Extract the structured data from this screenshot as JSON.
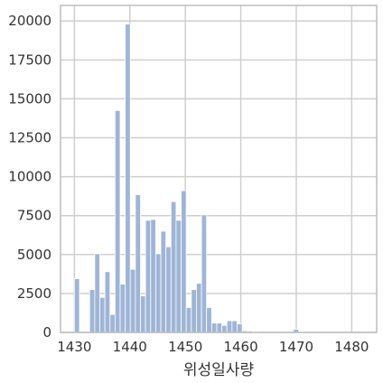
{
  "chart_data": {
    "type": "bar",
    "title": "",
    "xlabel": "위성일사량",
    "ylabel": "",
    "xlim": [
      1427.5,
      1484.5
    ],
    "ylim": [
      0,
      21000
    ],
    "x_ticks": [
      1430,
      1440,
      1450,
      1460,
      1470,
      1480
    ],
    "y_ticks": [
      0,
      2500,
      5000,
      7500,
      10000,
      12500,
      15000,
      17500,
      20000
    ],
    "grid": true,
    "legend": "none",
    "bins": [
      {
        "x0": 1430.0,
        "x1": 1430.92,
        "value": 3450
      },
      {
        "x0": 1432.75,
        "x1": 1433.67,
        "value": 2750
      },
      {
        "x0": 1433.67,
        "x1": 1434.58,
        "value": 5050
      },
      {
        "x0": 1434.58,
        "x1": 1435.5,
        "value": 2250
      },
      {
        "x0": 1435.5,
        "x1": 1436.42,
        "value": 3900
      },
      {
        "x0": 1436.42,
        "x1": 1437.33,
        "value": 1150
      },
      {
        "x0": 1437.33,
        "x1": 1438.25,
        "value": 14250
      },
      {
        "x0": 1438.25,
        "x1": 1439.17,
        "value": 3100
      },
      {
        "x0": 1439.17,
        "x1": 1440.08,
        "value": 19800
      },
      {
        "x0": 1440.08,
        "x1": 1441.0,
        "value": 4050
      },
      {
        "x0": 1441.0,
        "x1": 1441.92,
        "value": 8850
      },
      {
        "x0": 1441.92,
        "x1": 1442.83,
        "value": 2350
      },
      {
        "x0": 1442.83,
        "x1": 1443.75,
        "value": 7200
      },
      {
        "x0": 1443.75,
        "x1": 1444.67,
        "value": 7250
      },
      {
        "x0": 1444.67,
        "x1": 1445.58,
        "value": 5050
      },
      {
        "x0": 1445.58,
        "x1": 1446.5,
        "value": 6500
      },
      {
        "x0": 1446.5,
        "x1": 1447.42,
        "value": 5500
      },
      {
        "x0": 1447.42,
        "x1": 1448.33,
        "value": 8400
      },
      {
        "x0": 1448.33,
        "x1": 1449.25,
        "value": 7200
      },
      {
        "x0": 1449.25,
        "x1": 1450.17,
        "value": 9100
      },
      {
        "x0": 1450.17,
        "x1": 1451.08,
        "value": 1600
      },
      {
        "x0": 1451.08,
        "x1": 1452.0,
        "value": 2750
      },
      {
        "x0": 1452.0,
        "x1": 1452.92,
        "value": 3150
      },
      {
        "x0": 1452.92,
        "x1": 1453.83,
        "value": 7550
      },
      {
        "x0": 1453.83,
        "x1": 1454.75,
        "value": 1600
      },
      {
        "x0": 1454.75,
        "x1": 1455.67,
        "value": 600
      },
      {
        "x0": 1455.67,
        "x1": 1456.58,
        "value": 600
      },
      {
        "x0": 1456.58,
        "x1": 1457.5,
        "value": 450
      },
      {
        "x0": 1457.5,
        "x1": 1458.42,
        "value": 750
      },
      {
        "x0": 1458.42,
        "x1": 1459.33,
        "value": 750
      },
      {
        "x0": 1459.33,
        "x1": 1460.25,
        "value": 550
      },
      {
        "x0": 1460.25,
        "x1": 1461.17,
        "value": 100
      },
      {
        "x0": 1461.17,
        "x1": 1462.08,
        "value": 80
      },
      {
        "x0": 1462.08,
        "x1": 1463.0,
        "value": 40
      },
      {
        "x0": 1463.0,
        "x1": 1463.92,
        "value": 20
      },
      {
        "x0": 1469.5,
        "x1": 1470.42,
        "value": 200
      },
      {
        "x0": 1470.42,
        "x1": 1471.33,
        "value": 50
      },
      {
        "x0": 1475.5,
        "x1": 1476.42,
        "value": 10
      },
      {
        "x0": 1476.42,
        "x1": 1477.33,
        "value": 10
      }
    ]
  },
  "style": {
    "bar_fill": "#9fb5d7",
    "bar_stroke": "#ffffff",
    "grid_color": "#cfcfcf",
    "frame_color": "#bdbdbd",
    "background": "#ffffff"
  }
}
